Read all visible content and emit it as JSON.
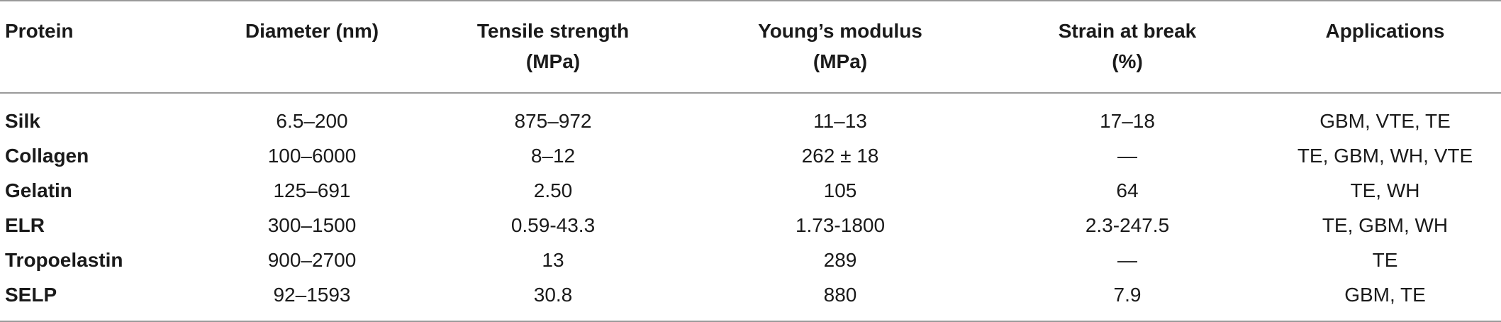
{
  "table": {
    "headers": [
      {
        "line1": "Protein",
        "line2": ""
      },
      {
        "line1": "Diameter (nm)",
        "line2": ""
      },
      {
        "line1": "Tensile strength",
        "line2": "(MPa)"
      },
      {
        "line1": "Young’s modulus",
        "line2": "(MPa)"
      },
      {
        "line1": "Strain at break",
        "line2": "(%)"
      },
      {
        "line1": "Applications",
        "line2": ""
      }
    ],
    "rows": [
      [
        "Silk",
        "6.5–200",
        "875–972",
        "11–13",
        "17–18",
        "GBM, VTE, TE"
      ],
      [
        "Collagen",
        "100–6000",
        "8–12",
        "262 ± 18",
        "—",
        "TE, GBM, WH, VTE"
      ],
      [
        "Gelatin",
        "125–691",
        "2.50",
        "105",
        "64",
        "TE, WH"
      ],
      [
        "ELR",
        "300–1500",
        "0.59-43.3",
        "1.73-1800",
        "2.3-247.5",
        "TE, GBM, WH"
      ],
      [
        "Tropoelastin",
        "900–2700",
        "13",
        "289",
        "—",
        "TE"
      ],
      [
        "SELP",
        "92–1593",
        "30.8",
        "880",
        "7.9",
        "GBM, TE"
      ]
    ]
  }
}
